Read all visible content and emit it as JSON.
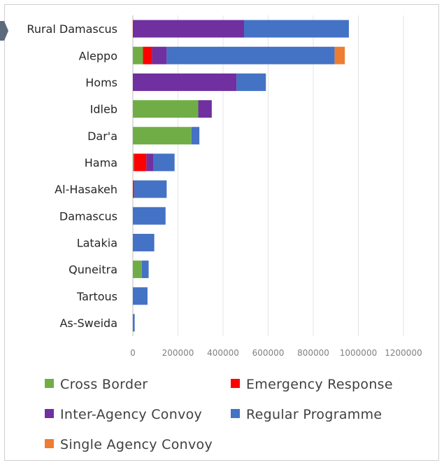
{
  "chart_data": {
    "type": "bar",
    "orientation": "horizontal",
    "stacked": true,
    "categories": [
      "Rural Damascus",
      "Aleppo",
      "Homs",
      "Idleb",
      "Dar'a",
      "Hama",
      "Al-Hasakeh",
      "Damascus",
      "Latakia",
      "Quneitra",
      "Tartous",
      "As-Sweida"
    ],
    "series": [
      {
        "name": "Cross Border",
        "color": "#70ad47",
        "values": [
          0,
          45000,
          0,
          290000,
          260000,
          5000,
          0,
          0,
          0,
          40000,
          0,
          0
        ]
      },
      {
        "name": "Emergency Response",
        "color": "#ff0000",
        "values": [
          3000,
          40000,
          0,
          0,
          0,
          55000,
          5000,
          0,
          0,
          0,
          0,
          0
        ]
      },
      {
        "name": "Inter-Agency Convoy",
        "color": "#7030a0",
        "values": [
          490000,
          65000,
          460000,
          60000,
          0,
          30000,
          0,
          0,
          0,
          0,
          0,
          0
        ]
      },
      {
        "name": "Regular Programme",
        "color": "#4472c4",
        "values": [
          465000,
          745000,
          130000,
          0,
          35000,
          95000,
          145000,
          145000,
          95000,
          30000,
          65000,
          8000
        ]
      },
      {
        "name": "Single Agency Convoy",
        "color": "#ed7d31",
        "values": [
          0,
          45000,
          0,
          0,
          0,
          0,
          0,
          0,
          0,
          0,
          0,
          0
        ]
      }
    ],
    "xlim": [
      0,
      1200000
    ],
    "xticks": [
      "0",
      "200000",
      "400000",
      "600000",
      "800000",
      "1000000",
      "1200000"
    ],
    "grid": true,
    "legend_position": "bottom"
  }
}
